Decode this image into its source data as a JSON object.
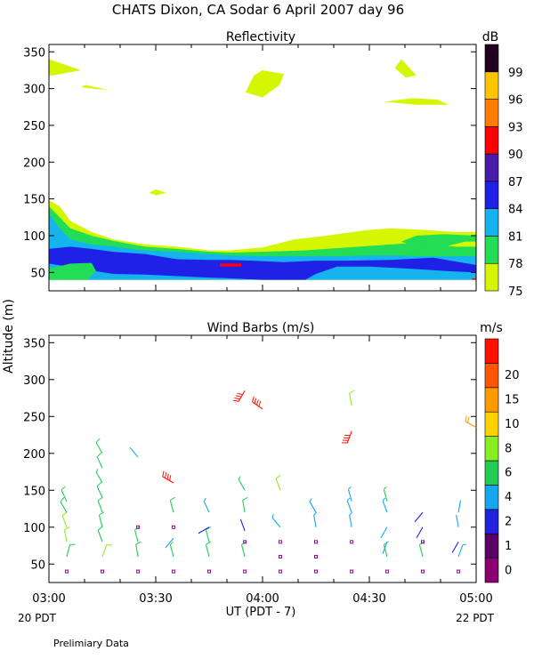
{
  "header": {
    "title": "CHATS Dixon, CA  Sodar    6 April 2007   day  96"
  },
  "footer": {
    "note": "Prelimiary Data",
    "xlabel": "UT  (PDT - 7)",
    "left_local": "20 PDT",
    "right_local": "22 PDT"
  },
  "shared": {
    "ylabel": "Altitude (m)",
    "y_ticks": [
      50,
      100,
      150,
      200,
      250,
      300,
      350
    ],
    "ylim": [
      25,
      360
    ],
    "x_ticks": [
      "03:00",
      "03:30",
      "04:00",
      "04:30",
      "05:00"
    ],
    "x_tick_hours": [
      3.0,
      3.5,
      4.0,
      4.5,
      5.0
    ],
    "xlim_hours": [
      3.0,
      5.0
    ]
  },
  "chart_data": [
    {
      "type": "heatmap",
      "title": "Reflectivity",
      "colorbar_unit": "dB",
      "colorbar_levels": [
        75,
        78,
        81,
        84,
        87,
        90,
        93,
        96,
        99
      ],
      "colorbar_colors": [
        "#d4f700",
        "#22dd55",
        "#16b4ee",
        "#1f22e6",
        "#4a1aa8",
        "#ff0000",
        "#ff7e00",
        "#ffc400",
        "#220020"
      ],
      "bands": [
        {
          "level": 75,
          "upper": [
            [
              3.0,
              148
            ],
            [
              3.05,
              140
            ],
            [
              3.1,
              120
            ],
            [
              3.2,
              105
            ],
            [
              3.3,
              95
            ],
            [
              3.45,
              88
            ],
            [
              3.6,
              85
            ],
            [
              3.75,
              80
            ],
            [
              3.85,
              80
            ],
            [
              4.0,
              84
            ],
            [
              4.15,
              95
            ],
            [
              4.3,
              100
            ],
            [
              4.5,
              108
            ],
            [
              4.6,
              110
            ],
            [
              4.75,
              108
            ],
            [
              4.9,
              105
            ],
            [
              5.0,
              105
            ]
          ],
          "lower": [
            [
              3.0,
              40
            ],
            [
              5.0,
              40
            ]
          ]
        },
        {
          "level": 78,
          "upper": [
            [
              3.0,
              140
            ],
            [
              3.05,
              125
            ],
            [
              3.1,
              110
            ],
            [
              3.2,
              100
            ],
            [
              3.3,
              93
            ],
            [
              3.45,
              85
            ],
            [
              3.6,
              82
            ],
            [
              3.75,
              78
            ],
            [
              3.85,
              77
            ],
            [
              4.0,
              78
            ],
            [
              4.2,
              80
            ],
            [
              4.35,
              83
            ],
            [
              4.45,
              85
            ],
            [
              4.6,
              88
            ],
            [
              4.7,
              90
            ],
            [
              4.8,
              88
            ],
            [
              4.9,
              85
            ],
            [
              5.0,
              85
            ]
          ],
          "lower": [
            [
              3.0,
              40
            ],
            [
              5.0,
              40
            ]
          ]
        },
        {
          "level": 81,
          "upper": [
            [
              3.0,
              130
            ],
            [
              3.05,
              110
            ],
            [
              3.1,
              95
            ],
            [
              3.2,
              88
            ],
            [
              3.3,
              85
            ],
            [
              3.45,
              80
            ],
            [
              3.6,
              78
            ],
            [
              3.75,
              75
            ],
            [
              3.85,
              73
            ],
            [
              4.0,
              72
            ],
            [
              4.2,
              72
            ],
            [
              4.35,
              72
            ],
            [
              4.5,
              73
            ],
            [
              4.6,
              73
            ],
            [
              4.75,
              72
            ],
            [
              4.9,
              72
            ],
            [
              5.0,
              72
            ]
          ],
          "lower": [
            [
              3.0,
              40
            ],
            [
              5.0,
              40
            ]
          ]
        },
        {
          "level": 84,
          "upper": [
            [
              3.0,
              82
            ],
            [
              3.1,
              85
            ],
            [
              3.2,
              82
            ],
            [
              3.3,
              78
            ],
            [
              3.45,
              75
            ],
            [
              3.6,
              68
            ],
            [
              3.75,
              67
            ],
            [
              3.85,
              67
            ],
            [
              3.95,
              66
            ],
            [
              4.1,
              64
            ],
            [
              4.25,
              66
            ],
            [
              4.4,
              66
            ],
            [
              4.6,
              67
            ],
            [
              4.8,
              70
            ],
            [
              4.9,
              65
            ],
            [
              5.0,
              60
            ]
          ],
          "lower": [
            [
              3.0,
              62
            ],
            [
              3.15,
              55
            ],
            [
              3.3,
              48
            ],
            [
              3.45,
              47
            ],
            [
              3.6,
              45
            ],
            [
              3.75,
              43
            ],
            [
              3.85,
              42
            ],
            [
              4.0,
              40
            ],
            [
              4.2,
              40
            ],
            [
              4.25,
              48
            ],
            [
              4.35,
              58
            ],
            [
              4.5,
              58
            ],
            [
              4.7,
              55
            ],
            [
              4.85,
              52
            ],
            [
              5.0,
              50
            ]
          ]
        }
      ],
      "patches": [
        {
          "level": 78,
          "points": [
            [
              3.0,
              40
            ],
            [
              3.0,
              55
            ],
            [
              3.1,
              62
            ],
            [
              3.2,
              63
            ],
            [
              3.22,
              52
            ],
            [
              3.18,
              40
            ]
          ]
        },
        {
          "level": 78,
          "points": [
            [
              4.72,
              100
            ],
            [
              4.65,
              92
            ],
            [
              4.72,
              84
            ],
            [
              4.85,
              85
            ],
            [
              4.95,
              92
            ],
            [
              5.0,
              92
            ],
            [
              5.0,
              100
            ],
            [
              4.85,
              102
            ]
          ]
        },
        {
          "level": 75,
          "points": [
            [
              3.0,
              340
            ],
            [
              3.15,
              325
            ],
            [
              3.02,
              318
            ],
            [
              3.0,
              318
            ]
          ]
        },
        {
          "level": 75,
          "points": [
            [
              3.17,
              305
            ],
            [
              3.28,
              298
            ],
            [
              3.2,
              300
            ],
            [
              3.15,
              302
            ]
          ]
        },
        {
          "level": 75,
          "points": [
            [
              4.0,
              325
            ],
            [
              4.1,
              320
            ],
            [
              4.08,
              305
            ],
            [
              4.0,
              288
            ],
            [
              3.92,
              295
            ],
            [
              3.96,
              318
            ]
          ]
        },
        {
          "level": 75,
          "points": [
            [
              4.65,
              340
            ],
            [
              4.72,
              318
            ],
            [
              4.67,
              315
            ],
            [
              4.62,
              328
            ]
          ]
        },
        {
          "level": 75,
          "points": [
            [
              4.57,
              282
            ],
            [
              4.7,
              287
            ],
            [
              4.82,
              285
            ],
            [
              4.87,
              278
            ],
            [
              4.72,
              278
            ]
          ]
        },
        {
          "level": 75,
          "points": [
            [
              3.5,
              163
            ],
            [
              3.55,
              158
            ],
            [
              3.5,
              155
            ],
            [
              3.47,
              158
            ]
          ]
        },
        {
          "level": 90,
          "points": [
            [
              3.8,
              62
            ],
            [
              3.9,
              62
            ],
            [
              3.9,
              58
            ],
            [
              3.8,
              58
            ]
          ]
        },
        {
          "level": 90,
          "points": [
            [
              4.98,
              42
            ],
            [
              5.0,
              42
            ],
            [
              5.0,
              40
            ],
            [
              4.98,
              40
            ]
          ]
        }
      ]
    },
    {
      "type": "scatter",
      "title": "Wind Barbs (m/s)",
      "colorbar_unit": "m/s",
      "colorbar_ticks": [
        0,
        1,
        2,
        4,
        6,
        8,
        10,
        15,
        20
      ],
      "colorbar_colors": [
        "#8b0070",
        "#5a0066",
        "#2222dd",
        "#16a8ee",
        "#22cc55",
        "#88ee22",
        "#ffd200",
        "#ff9900",
        "#ff5500",
        "#ff1100"
      ],
      "barbs": [
        {
          "t": 3.083,
          "z": 40,
          "speed": 0,
          "dir": 0
        },
        {
          "t": 3.083,
          "z": 60,
          "speed": 5,
          "dir": 15
        },
        {
          "t": 3.083,
          "z": 80,
          "speed": 6,
          "dir": 350
        },
        {
          "t": 3.083,
          "z": 100,
          "speed": 6,
          "dir": 340
        },
        {
          "t": 3.083,
          "z": 120,
          "speed": 5,
          "dir": 330
        },
        {
          "t": 3.083,
          "z": 135,
          "speed": 5,
          "dir": 335
        },
        {
          "t": 3.25,
          "z": 40,
          "speed": 0,
          "dir": 0
        },
        {
          "t": 3.25,
          "z": 60,
          "speed": 6,
          "dir": 20
        },
        {
          "t": 3.25,
          "z": 80,
          "speed": 5,
          "dir": 340
        },
        {
          "t": 3.25,
          "z": 100,
          "speed": 5,
          "dir": 345
        },
        {
          "t": 3.25,
          "z": 120,
          "speed": 5,
          "dir": 340
        },
        {
          "t": 3.25,
          "z": 140,
          "speed": 5,
          "dir": 335
        },
        {
          "t": 3.25,
          "z": 160,
          "speed": 4,
          "dir": 330
        },
        {
          "t": 3.25,
          "z": 180,
          "speed": 5,
          "dir": 335
        },
        {
          "t": 3.25,
          "z": 200,
          "speed": 5,
          "dir": 330
        },
        {
          "t": 3.417,
          "z": 40,
          "speed": 0,
          "dir": 0
        },
        {
          "t": 3.417,
          "z": 60,
          "speed": 5,
          "dir": 350
        },
        {
          "t": 3.417,
          "z": 80,
          "speed": 5,
          "dir": 345
        },
        {
          "t": 3.417,
          "z": 100,
          "speed": 0,
          "dir": 0
        },
        {
          "t": 3.417,
          "z": 195,
          "speed": 2,
          "dir": 320
        },
        {
          "t": 3.583,
          "z": 40,
          "speed": 0,
          "dir": 0
        },
        {
          "t": 3.583,
          "z": 60,
          "speed": 4,
          "dir": 345
        },
        {
          "t": 3.583,
          "z": 85,
          "speed": 2,
          "dir": 220
        },
        {
          "t": 3.583,
          "z": 100,
          "speed": 0,
          "dir": 0
        },
        {
          "t": 3.583,
          "z": 120,
          "speed": 5,
          "dir": 345
        },
        {
          "t": 3.583,
          "z": 160,
          "speed": 22,
          "dir": 300
        },
        {
          "t": 3.75,
          "z": 40,
          "speed": 0,
          "dir": 0
        },
        {
          "t": 3.75,
          "z": 60,
          "speed": 5,
          "dir": 345
        },
        {
          "t": 3.75,
          "z": 80,
          "speed": 5,
          "dir": 345
        },
        {
          "t": 3.75,
          "z": 100,
          "speed": 1,
          "dir": 240
        },
        {
          "t": 3.75,
          "z": 120,
          "speed": 3,
          "dir": 335
        },
        {
          "t": 3.917,
          "z": 40,
          "speed": 0,
          "dir": 0
        },
        {
          "t": 3.917,
          "z": 60,
          "speed": 5,
          "dir": 345
        },
        {
          "t": 3.917,
          "z": 80,
          "speed": 0,
          "dir": 0
        },
        {
          "t": 3.917,
          "z": 95,
          "speed": 1,
          "dir": 340
        },
        {
          "t": 3.917,
          "z": 120,
          "speed": 5,
          "dir": 350
        },
        {
          "t": 3.917,
          "z": 150,
          "speed": 4,
          "dir": 330
        },
        {
          "t": 3.917,
          "z": 285,
          "speed": 21,
          "dir": 210
        },
        {
          "t": 4.0,
          "z": 260,
          "speed": 21,
          "dir": 305
        },
        {
          "t": 4.083,
          "z": 40,
          "speed": 0,
          "dir": 0
        },
        {
          "t": 4.083,
          "z": 60,
          "speed": 0,
          "dir": 0
        },
        {
          "t": 4.083,
          "z": 80,
          "speed": 0,
          "dir": 0
        },
        {
          "t": 4.083,
          "z": 100,
          "speed": 3,
          "dir": 320
        },
        {
          "t": 4.083,
          "z": 150,
          "speed": 6,
          "dir": 340
        },
        {
          "t": 4.25,
          "z": 40,
          "speed": 0,
          "dir": 0
        },
        {
          "t": 4.25,
          "z": 60,
          "speed": 0,
          "dir": 0
        },
        {
          "t": 4.25,
          "z": 80,
          "speed": 0,
          "dir": 0
        },
        {
          "t": 4.25,
          "z": 100,
          "speed": 3,
          "dir": 350
        },
        {
          "t": 4.25,
          "z": 120,
          "speed": 3,
          "dir": 330
        },
        {
          "t": 4.417,
          "z": 40,
          "speed": 0,
          "dir": 0
        },
        {
          "t": 4.417,
          "z": 80,
          "speed": 0,
          "dir": 0
        },
        {
          "t": 4.417,
          "z": 100,
          "speed": 3,
          "dir": 350
        },
        {
          "t": 4.417,
          "z": 120,
          "speed": 3,
          "dir": 340
        },
        {
          "t": 4.417,
          "z": 135,
          "speed": 3,
          "dir": 345
        },
        {
          "t": 4.417,
          "z": 230,
          "speed": 22,
          "dir": 200
        },
        {
          "t": 4.417,
          "z": 265,
          "speed": 7,
          "dir": 350
        },
        {
          "t": 4.583,
          "z": 40,
          "speed": 0,
          "dir": 0
        },
        {
          "t": 4.583,
          "z": 60,
          "speed": 5,
          "dir": 345
        },
        {
          "t": 4.583,
          "z": 80,
          "speed": 2,
          "dir": 200
        },
        {
          "t": 4.583,
          "z": 100,
          "speed": 2,
          "dir": 210
        },
        {
          "t": 4.583,
          "z": 120,
          "speed": 3,
          "dir": 340
        },
        {
          "t": 4.583,
          "z": 135,
          "speed": 4,
          "dir": 345
        },
        {
          "t": 4.75,
          "z": 40,
          "speed": 0,
          "dir": 0
        },
        {
          "t": 4.75,
          "z": 60,
          "speed": 5,
          "dir": 345
        },
        {
          "t": 4.75,
          "z": 80,
          "speed": 0,
          "dir": 0
        },
        {
          "t": 4.75,
          "z": 100,
          "speed": 1,
          "dir": 210
        },
        {
          "t": 4.75,
          "z": 120,
          "speed": 1,
          "dir": 220
        },
        {
          "t": 4.917,
          "z": 40,
          "speed": 0,
          "dir": 0
        },
        {
          "t": 4.917,
          "z": 60,
          "speed": 3,
          "dir": 20
        },
        {
          "t": 4.917,
          "z": 80,
          "speed": 1,
          "dir": 210
        },
        {
          "t": 4.917,
          "z": 100,
          "speed": 2,
          "dir": 350
        },
        {
          "t": 4.917,
          "z": 120,
          "speed": 2,
          "dir": 10
        },
        {
          "t": 5.0,
          "z": 235,
          "speed": 10,
          "dir": 300
        }
      ]
    }
  ]
}
